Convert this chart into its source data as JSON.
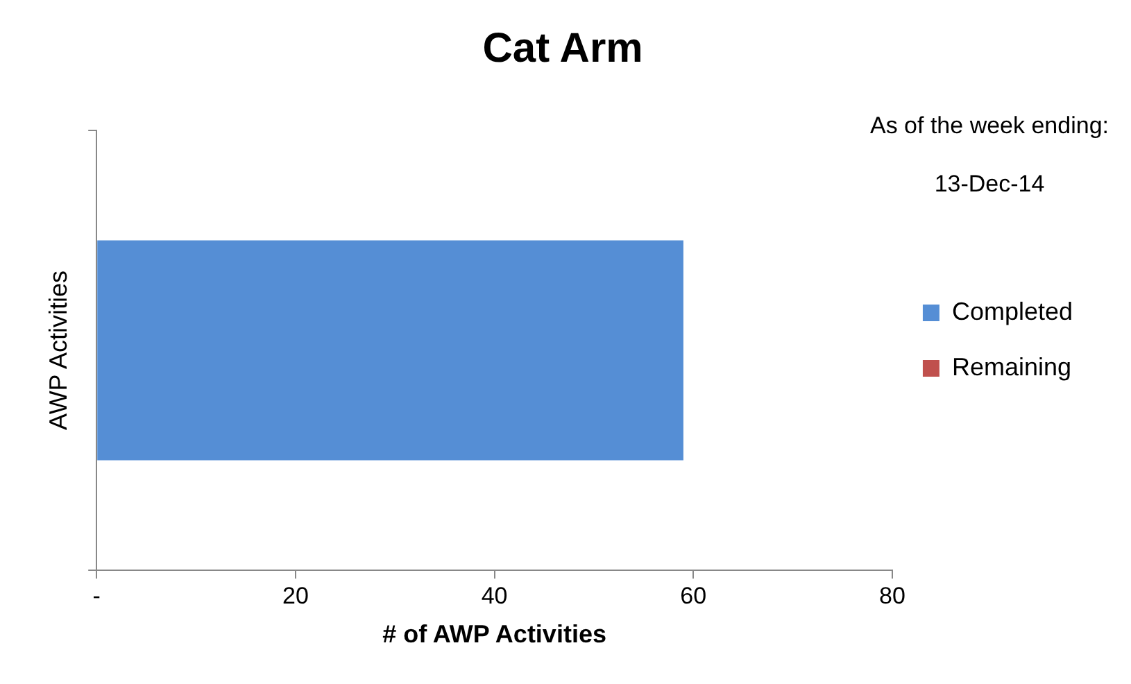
{
  "chart_data": {
    "type": "bar",
    "orientation": "horizontal",
    "stacked": true,
    "title": "Cat Arm",
    "xlabel": "# of AWP Activities",
    "ylabel": "AWP Activities",
    "categories": [
      null
    ],
    "series": [
      {
        "name": "Completed",
        "color": "#558ed5",
        "values": [
          59
        ]
      },
      {
        "name": "Remaining",
        "color": "#c0504d",
        "values": [
          0
        ]
      }
    ],
    "xlim": [
      0,
      80
    ],
    "xticks": [
      {
        "value": 0,
        "label": "-"
      },
      20,
      40,
      60,
      80
    ],
    "grid": false,
    "legend": "right",
    "annotations": [
      "As of the week ending:",
      "13-Dec-14"
    ]
  }
}
